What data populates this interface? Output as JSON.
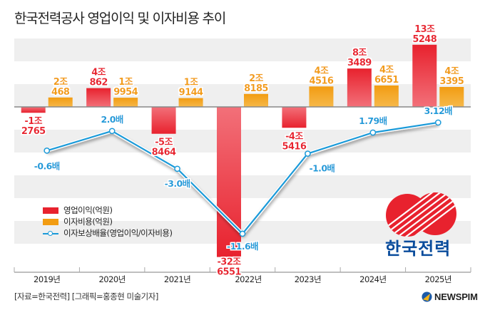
{
  "title": "한국전력공사 영업이익 및 이자비용 추이",
  "source": "[자료=한국전력] [그래픽=홍종현 미술기자]",
  "brand": {
    "newspim": "NEWSPIM",
    "kepco_name": "한국전력"
  },
  "colors": {
    "operating_profit": "#e8222e",
    "interest_expense": "#f29c12",
    "coverage_line": "#1a9ad9",
    "band_gray": "#efefef",
    "kepco_blue": "#0a4c9c"
  },
  "chart_data": {
    "type": "bar",
    "title": "한국전력공사 영업이익 및 이자비용 추이",
    "categories": [
      "2019년",
      "2020년",
      "2021년",
      "2022년",
      "2023년",
      "2024년",
      "2025년"
    ],
    "series": [
      {
        "name": "영업이익(억원)",
        "type": "bar",
        "values": [
          -12765,
          40862,
          -58464,
          -326551,
          -45416,
          83489,
          135248
        ],
        "labels": [
          [
            "-1조",
            "2765"
          ],
          [
            "4조",
            "862"
          ],
          [
            "-5조",
            "8464"
          ],
          [
            "-32조",
            "6551"
          ],
          [
            "-4조",
            "5416"
          ],
          [
            "8조",
            "3489"
          ],
          [
            "13조",
            "5248"
          ]
        ]
      },
      {
        "name": "이자비용(억원)",
        "type": "bar",
        "values": [
          20468,
          19954,
          19144,
          28185,
          44516,
          46651,
          43395
        ],
        "labels": [
          [
            "2조",
            "468"
          ],
          [
            "1조",
            "9954"
          ],
          [
            "1조",
            "9144"
          ],
          [
            "2조",
            "8185"
          ],
          [
            "4조",
            "4516"
          ],
          [
            "4조",
            "6651"
          ],
          [
            "4조",
            "3395"
          ]
        ]
      },
      {
        "name": "이자보상배율(영업이익/이자비용)",
        "type": "line",
        "values": [
          -0.6,
          2.0,
          -3.0,
          -11.6,
          -1.0,
          1.79,
          3.12
        ],
        "labels": [
          "-0.6배",
          "2.0배",
          "-3.0배",
          "-11.6배",
          "-1.0배",
          "1.79배",
          "3.12배"
        ]
      }
    ],
    "legend": [
      "영업이익(억원)",
      "이자비용(억원)",
      "이자보상배율(영업이익/이자비용)"
    ],
    "legend_position": "left-middle",
    "xlabel": "",
    "ylabel": "",
    "grid": "alternating horizontal bands"
  }
}
